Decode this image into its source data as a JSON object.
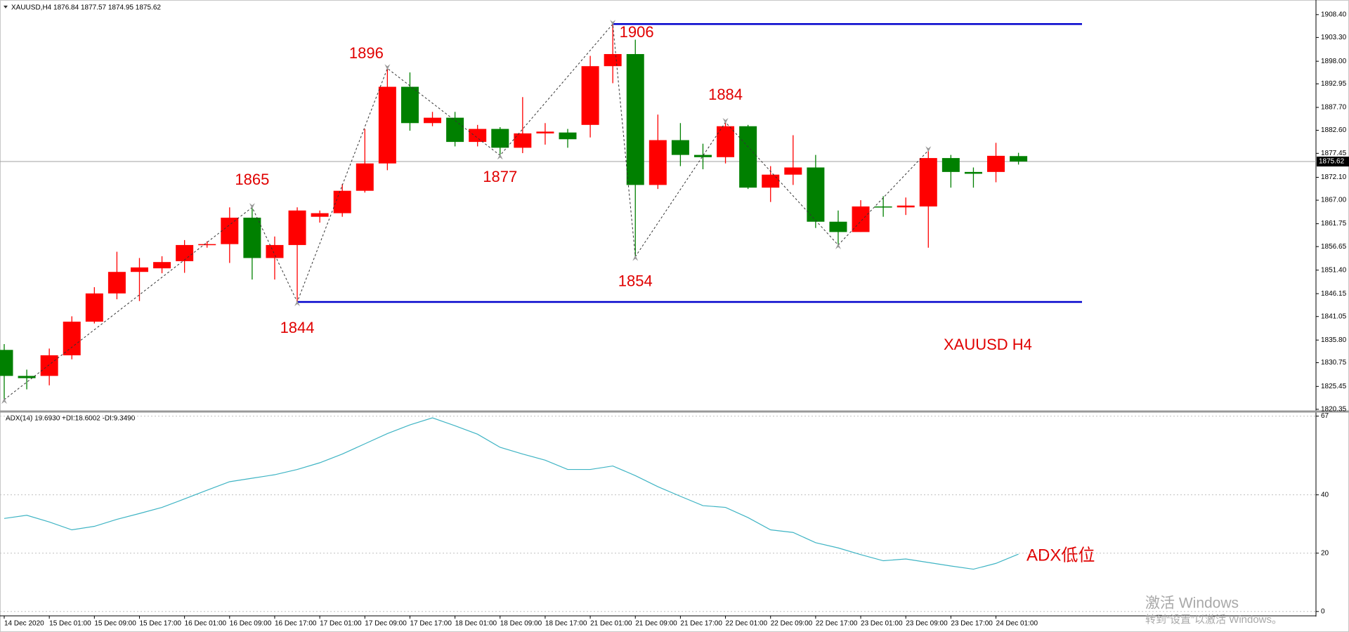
{
  "chart_data": [
    {
      "type": "candlestick",
      "title": "XAUUSD,H4  1876.84 1877.57 1874.95 1875.62",
      "categories": [
        "14 Dec 2020",
        null,
        "15 Dec 01:00",
        null,
        "15 Dec 09:00",
        null,
        "15 Dec 17:00",
        null,
        "16 Dec 01:00",
        null,
        "16 Dec 09:00",
        null,
        "16 Dec 17:00",
        null,
        "17 Dec 01:00",
        null,
        "17 Dec 09:00",
        null,
        "17 Dec 17:00",
        null,
        "18 Dec 01:00",
        null,
        "18 Dec 09:00",
        null,
        "18 Dec 17:00",
        null,
        "21 Dec 01:00",
        null,
        "21 Dec 09:00",
        null,
        "21 Dec 17:00",
        null,
        "22 Dec 01:00",
        null,
        "22 Dec 09:00",
        null,
        "22 Dec 17:00",
        null,
        "23 Dec 01:00",
        null,
        "23 Dec 09:00",
        null,
        "23 Dec 17:00",
        null,
        "24 Dec 01:00",
        null
      ],
      "open": [
        1833.6,
        1827.8,
        1827.8,
        1832.4,
        1839.9,
        1846.2,
        1851.0,
        1851.8,
        1853.4,
        1857.0,
        1857.2,
        1863.1,
        1854.1,
        1857.0,
        1863.3,
        1864.1,
        1869.1,
        1875.2,
        1892.3,
        1884.2,
        1885.4,
        1880.0,
        1882.9,
        1878.7,
        1881.9,
        1882.1,
        1883.8,
        1896.9,
        1899.6,
        1870.4,
        1880.4,
        1877.1,
        1876.6,
        1883.5,
        1869.8,
        1872.7,
        1874.3,
        1862.2,
        1859.9,
        1865.6,
        1865.4,
        1865.6,
        1876.4,
        1873.3,
        1873.3,
        1876.84
      ],
      "high": [
        1834.9,
        1829.2,
        1833.9,
        1841.1,
        1847.6,
        1855.5,
        1854.1,
        1854.5,
        1858.1,
        1857.8,
        1865.4,
        1865.4,
        1858.9,
        1865.4,
        1864.7,
        1870.6,
        1882.9,
        1896.4,
        1895.5,
        1886.7,
        1886.7,
        1883.8,
        1883.3,
        1890.0,
        1884.2,
        1882.9,
        1899.2,
        1906.3,
        1902.8,
        1886.1,
        1884.2,
        1879.6,
        1884.4,
        1883.8,
        1874.6,
        1881.5,
        1877.1,
        1864.7,
        1867.0,
        1867.9,
        1867.6,
        1878.1,
        1877.1,
        1874.3,
        1879.8,
        1877.57
      ],
      "low": [
        1822.5,
        1824.8,
        1825.7,
        1831.5,
        1839.5,
        1844.9,
        1844.5,
        1850.7,
        1850.8,
        1856.4,
        1853.0,
        1849.3,
        1849.3,
        1844.3,
        1862.0,
        1863.3,
        1868.7,
        1873.7,
        1882.5,
        1883.5,
        1879.0,
        1879.0,
        1877.0,
        1877.5,
        1879.4,
        1878.7,
        1881.0,
        1893.1,
        1854.4,
        1869.5,
        1874.6,
        1873.9,
        1875.2,
        1869.5,
        1866.6,
        1870.4,
        1860.8,
        1857.0,
        1859.9,
        1863.3,
        1863.7,
        1856.4,
        1869.8,
        1869.8,
        1871.0,
        1874.95
      ],
      "close": [
        1827.8,
        1827.3,
        1832.4,
        1839.9,
        1846.2,
        1851.0,
        1852.0,
        1853.2,
        1857.0,
        1857.2,
        1863.1,
        1854.1,
        1857.0,
        1864.7,
        1864.1,
        1869.1,
        1875.2,
        1892.3,
        1884.2,
        1885.4,
        1880.0,
        1882.9,
        1878.7,
        1881.9,
        1882.3,
        1880.6,
        1896.9,
        1899.6,
        1870.4,
        1880.4,
        1877.1,
        1876.6,
        1883.5,
        1869.8,
        1872.7,
        1874.3,
        1862.2,
        1859.9,
        1865.6,
        1865.4,
        1865.8,
        1876.4,
        1873.3,
        1872.9,
        1876.9,
        1875.62
      ],
      "up_color": "#ff0000",
      "down_color": "#008000",
      "level_color": "#0000cc",
      "ylim": [
        1819.86,
        1911.66
      ],
      "yticks": [
        {
          "value": 1908.4,
          "label": "1908.40"
        },
        {
          "value": 1903.3,
          "label": "1903.30"
        },
        {
          "value": 1898,
          "label": "1898.00"
        },
        1892.95,
        {
          "value": 1887.7,
          "label": "1887.70"
        },
        {
          "value": 1882.6,
          "label": "1882.60"
        },
        1877.45,
        {
          "value": 1872.1,
          "label": "1872.10"
        },
        {
          "value": 1867,
          "label": "1867.00"
        },
        1861.75,
        1856.65,
        {
          "value": 1851.4,
          "label": "1851.40"
        },
        1846.15,
        1841.05,
        {
          "value": 1835.8,
          "label": "1835.80"
        },
        1830.75,
        1825.45,
        1820.35
      ],
      "last_price": 1875.62,
      "pivot_labels": [
        "1865",
        "1844",
        "1896",
        "1877",
        "1906",
        "1854",
        "1884"
      ],
      "annotation": "XAUUSD  H4"
    },
    {
      "type": "line",
      "title": "ADX(14) 19.6930 +DI:18.6002 -DI:9.3490",
      "values": [
        31.9,
        33.0,
        30.7,
        28.0,
        29.2,
        31.6,
        33.6,
        35.7,
        38.6,
        41.6,
        44.5,
        45.7,
        46.9,
        48.7,
        51.0,
        54.0,
        57.5,
        61.0,
        64.0,
        66.4,
        63.7,
        60.8,
        56.3,
        54.0,
        51.9,
        48.7,
        48.7,
        49.9,
        46.6,
        42.8,
        39.5,
        36.3,
        35.7,
        32.2,
        28.0,
        27.1,
        23.6,
        21.8,
        19.5,
        17.4,
        18.0,
        16.8,
        15.6,
        14.5,
        16.5,
        19.69
      ],
      "color": "#3fb4c4",
      "ylim": [
        -1.5,
        68.1
      ],
      "yticks": [
        0,
        20,
        40,
        67
      ],
      "grid": true,
      "annotation": "ADX低位"
    }
  ],
  "watermark": {
    "line1": "激活 Windows",
    "line2": "转到“设置”以激活 Windows。"
  }
}
